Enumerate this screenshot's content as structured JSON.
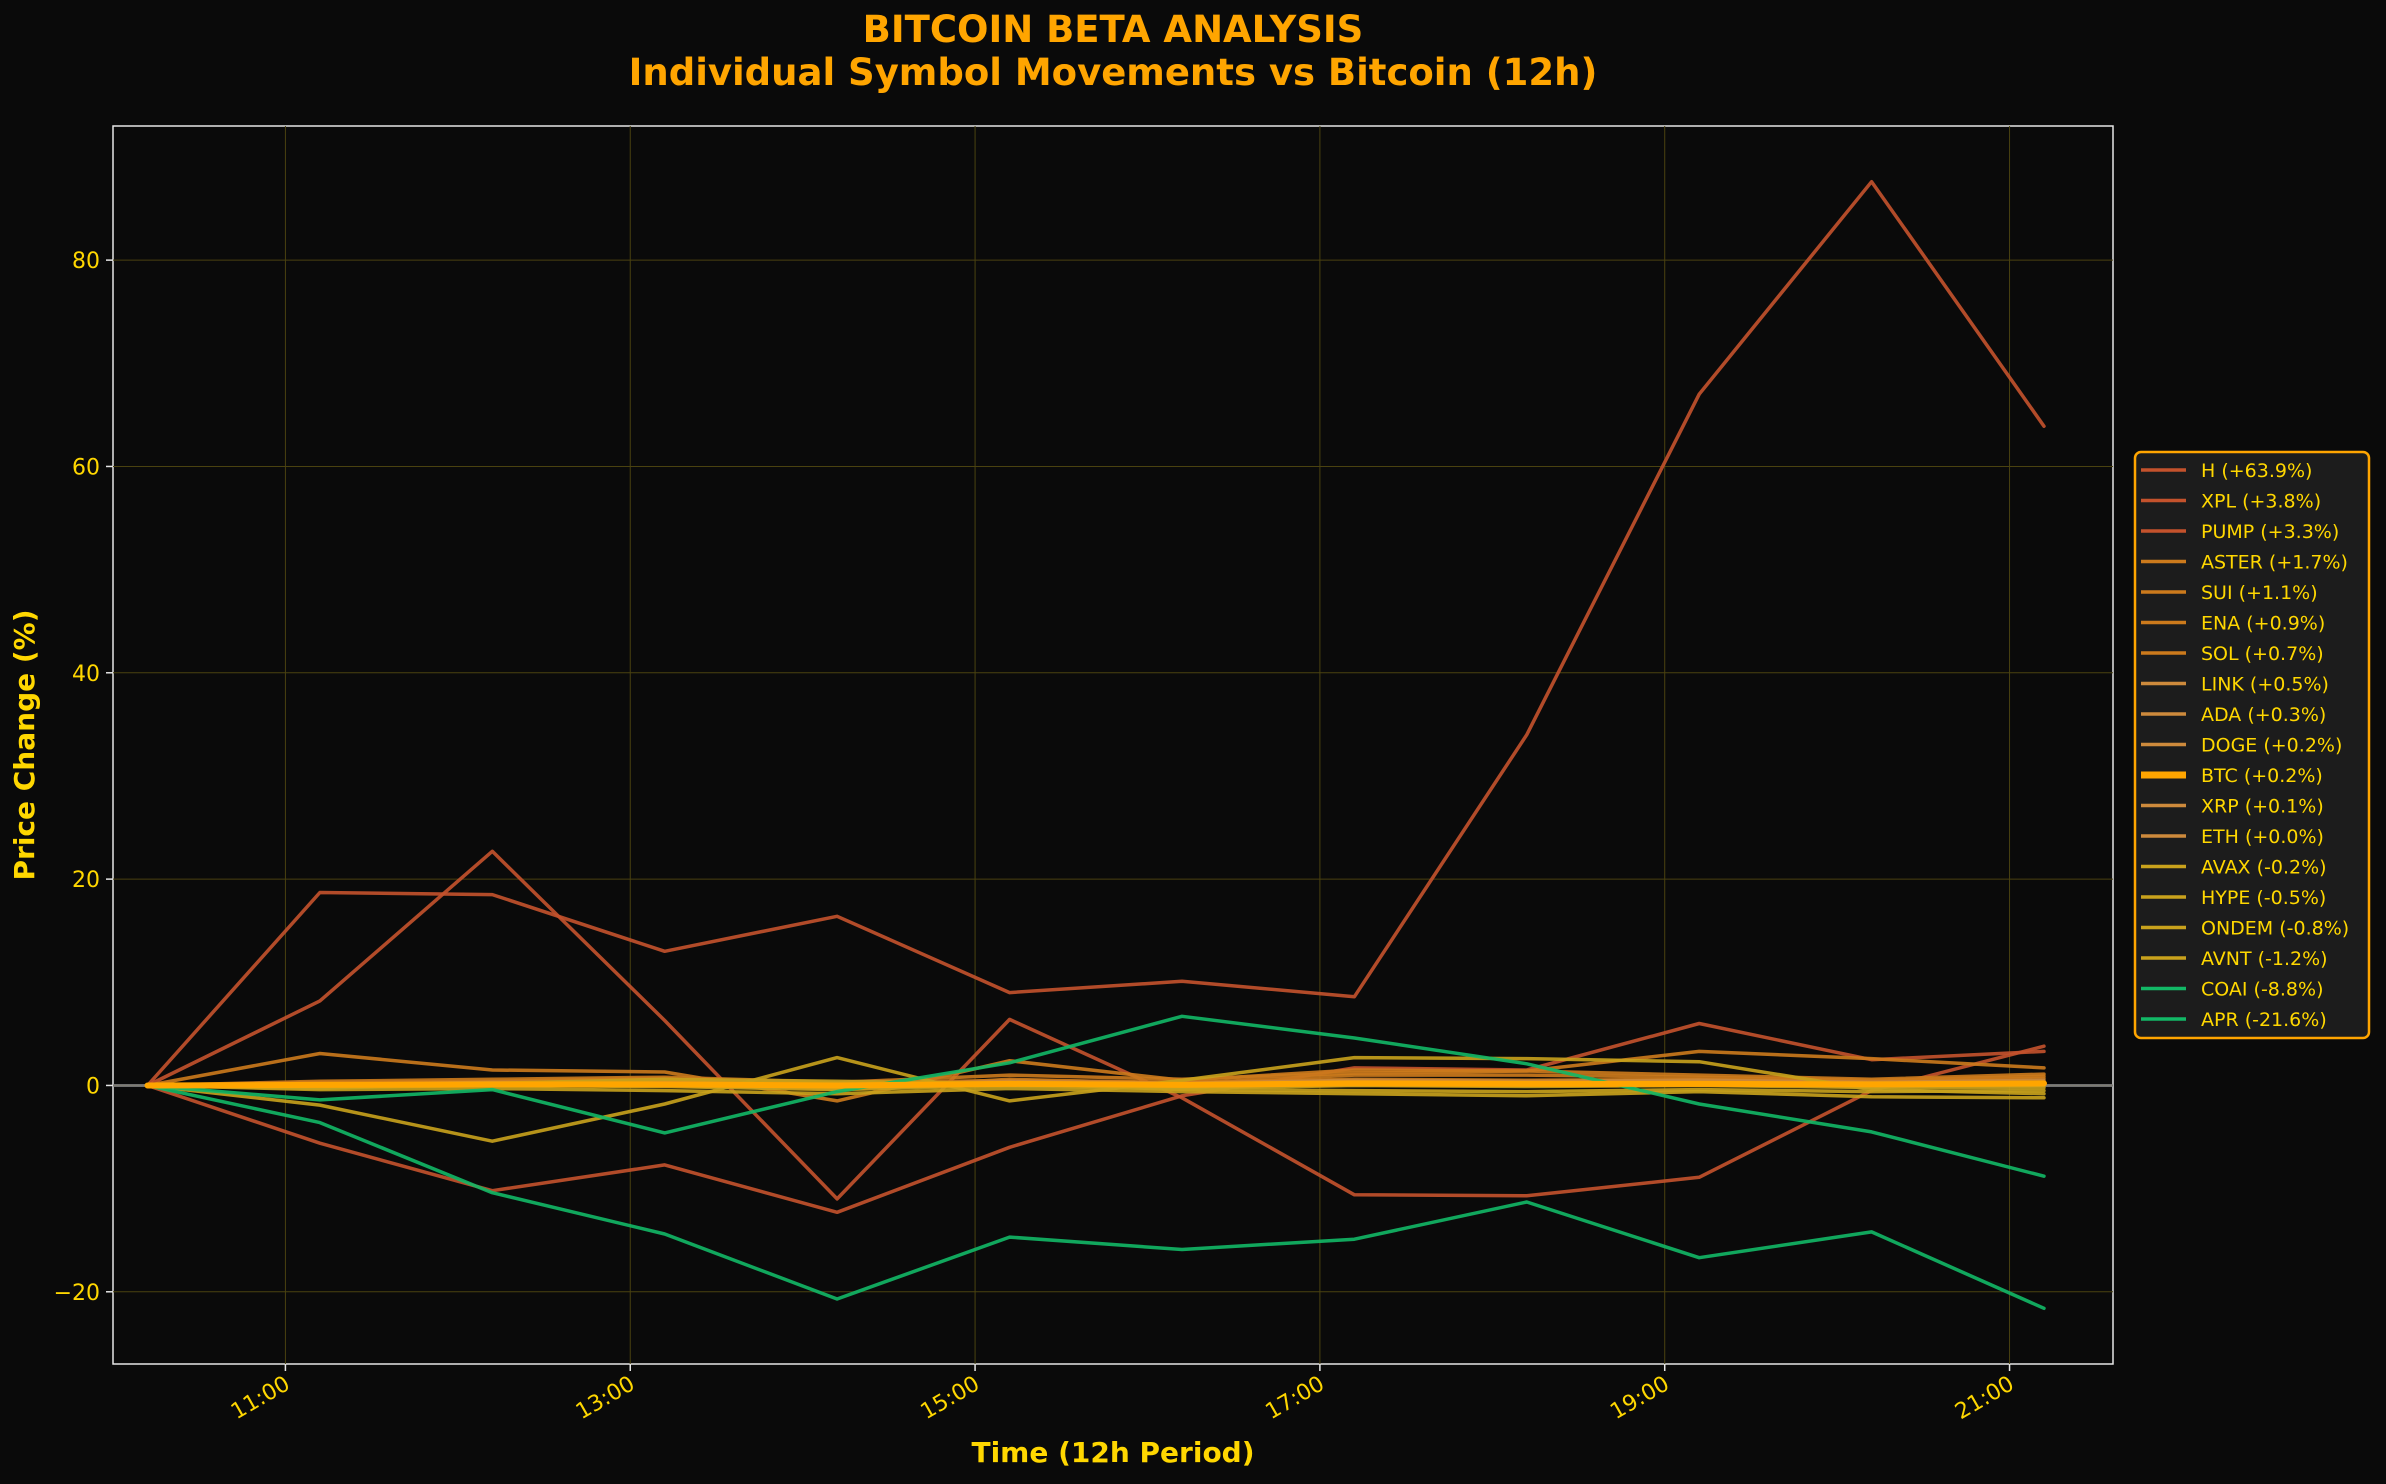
{
  "chart_data": {
    "type": "line",
    "title": "BITCOIN BETA ANALYSIS",
    "subtitle": "Individual Symbol Movements vs Bitcoin (12h)",
    "xlabel": "Time (12h Period)",
    "ylabel": "Price Change (%)",
    "x": [
      "10:12",
      "11:12",
      "12:12",
      "13:12",
      "14:12",
      "15:12",
      "16:12",
      "17:12",
      "18:12",
      "19:12",
      "20:12",
      "21:12"
    ],
    "xlim": [
      "10:00",
      "21:36"
    ],
    "xticks": [
      "11:00",
      "13:00",
      "15:00",
      "17:00",
      "19:00",
      "21:00"
    ],
    "ylim": [
      -27,
      93
    ],
    "yticks": [
      -20,
      0,
      20,
      40,
      60,
      80
    ],
    "ytick_labels": [
      "−20",
      "0",
      "20",
      "40",
      "60",
      "80"
    ],
    "grid": true,
    "zero_line": true,
    "legend_position": "center-right",
    "series": [
      {
        "name": "H (+63.9%)",
        "color": "#c4522c",
        "values": [
          0,
          18.7,
          18.5,
          13.0,
          16.4,
          9.0,
          10.1,
          8.6,
          34.0,
          67.0,
          87.6,
          63.9
        ]
      },
      {
        "name": "XPL (+3.8%)",
        "color": "#c4522c",
        "values": [
          0,
          8.2,
          22.7,
          6.3,
          -11.0,
          6.4,
          -1.2,
          -10.6,
          -10.7,
          -8.9,
          -0.5,
          3.8
        ]
      },
      {
        "name": "PUMP (+3.3%)",
        "color": "#c4522c",
        "values": [
          0,
          -5.6,
          -10.2,
          -7.7,
          -12.3,
          -6.0,
          -1.0,
          1.7,
          1.5,
          6.0,
          2.5,
          3.3
        ]
      },
      {
        "name": "ASTER (+1.7%)",
        "color": "#cc7a1c",
        "values": [
          0,
          3.1,
          1.5,
          1.3,
          -1.5,
          2.4,
          0.5,
          1.5,
          1.4,
          3.3,
          2.6,
          1.7
        ]
      },
      {
        "name": "SUI (+1.1%)",
        "color": "#cc7a1c",
        "values": [
          0,
          0.4,
          0.6,
          0.8,
          0.3,
          1.0,
          0.6,
          1.2,
          1.4,
          1.0,
          0.6,
          1.1
        ]
      },
      {
        "name": "ENA (+0.9%)",
        "color": "#cc7a1c",
        "values": [
          0,
          0.3,
          0.4,
          0.7,
          -0.4,
          0.6,
          0.2,
          1.0,
          1.0,
          0.8,
          0.5,
          0.9
        ]
      },
      {
        "name": "SOL (+0.7%)",
        "color": "#cc7a1c",
        "values": [
          0,
          0.2,
          0.3,
          0.4,
          0.2,
          0.5,
          0.3,
          0.6,
          0.5,
          0.6,
          0.4,
          0.7
        ]
      },
      {
        "name": "LINK (+0.5%)",
        "color": "#cd8a3c",
        "values": [
          0,
          0.1,
          0.3,
          0.3,
          0.0,
          0.4,
          0.2,
          0.5,
          0.4,
          0.5,
          0.3,
          0.5
        ]
      },
      {
        "name": "ADA (+0.3%)",
        "color": "#cd8a3c",
        "values": [
          0,
          0.1,
          0.2,
          0.2,
          -0.1,
          0.3,
          0.1,
          0.3,
          0.2,
          0.3,
          0.2,
          0.3
        ]
      },
      {
        "name": "DOGE (+0.2%)",
        "color": "#cd8a3c",
        "values": [
          0,
          0.0,
          0.2,
          0.1,
          -0.2,
          0.2,
          0.0,
          0.3,
          0.2,
          0.2,
          0.1,
          0.2
        ]
      },
      {
        "name": "BTC (+0.2%)",
        "color": "#ffa500",
        "highlight": true,
        "values": [
          0,
          0.05,
          0.1,
          0.1,
          0.0,
          0.15,
          0.05,
          0.2,
          0.15,
          0.15,
          0.1,
          0.2
        ]
      },
      {
        "name": "XRP (+0.1%)",
        "color": "#cd8a3c",
        "values": [
          0,
          -0.1,
          0.1,
          0.0,
          -0.2,
          0.1,
          -0.1,
          0.2,
          0.1,
          0.1,
          0.0,
          0.1
        ]
      },
      {
        "name": "ETH (+0.0%)",
        "color": "#cd8a3c",
        "values": [
          0,
          -0.1,
          0.0,
          0.0,
          -0.3,
          0.1,
          -0.2,
          0.1,
          0.0,
          0.1,
          -0.1,
          0.0
        ]
      },
      {
        "name": "AVAX (-0.2%)",
        "color": "#c9a21c",
        "values": [
          0,
          -0.2,
          0.0,
          -0.1,
          -0.4,
          0.0,
          -0.3,
          0.0,
          -0.1,
          0.0,
          -0.2,
          -0.2
        ]
      },
      {
        "name": "HYPE (-0.5%)",
        "color": "#c9a21c",
        "values": [
          0,
          -0.3,
          0.2,
          0.6,
          0.4,
          0.2,
          -0.4,
          -0.5,
          -0.6,
          -0.4,
          -0.6,
          -0.5
        ]
      },
      {
        "name": "ONDEM (-0.8%)",
        "color": "#c9a21c",
        "values": [
          0,
          -1.9,
          -5.4,
          -1.8,
          2.7,
          -1.5,
          0.5,
          2.7,
          2.6,
          2.3,
          -0.4,
          -0.8
        ]
      },
      {
        "name": "AVNT (-1.2%)",
        "color": "#c9a21c",
        "values": [
          0,
          -0.4,
          -0.3,
          -0.5,
          -0.8,
          -0.3,
          -0.6,
          -0.8,
          -1.0,
          -0.6,
          -1.1,
          -1.2
        ]
      },
      {
        "name": "COAI (-8.8%)",
        "color": "#12b866",
        "values": [
          0,
          -1.4,
          -0.4,
          -4.6,
          -0.6,
          2.2,
          6.7,
          4.6,
          2.1,
          -1.8,
          -4.5,
          -8.8
        ]
      },
      {
        "name": "APR (-21.6%)",
        "color": "#12b866",
        "values": [
          0,
          -3.6,
          -10.4,
          -14.4,
          -20.7,
          -14.7,
          -15.9,
          -14.9,
          -11.3,
          -16.7,
          -14.2,
          -21.6
        ]
      }
    ]
  }
}
